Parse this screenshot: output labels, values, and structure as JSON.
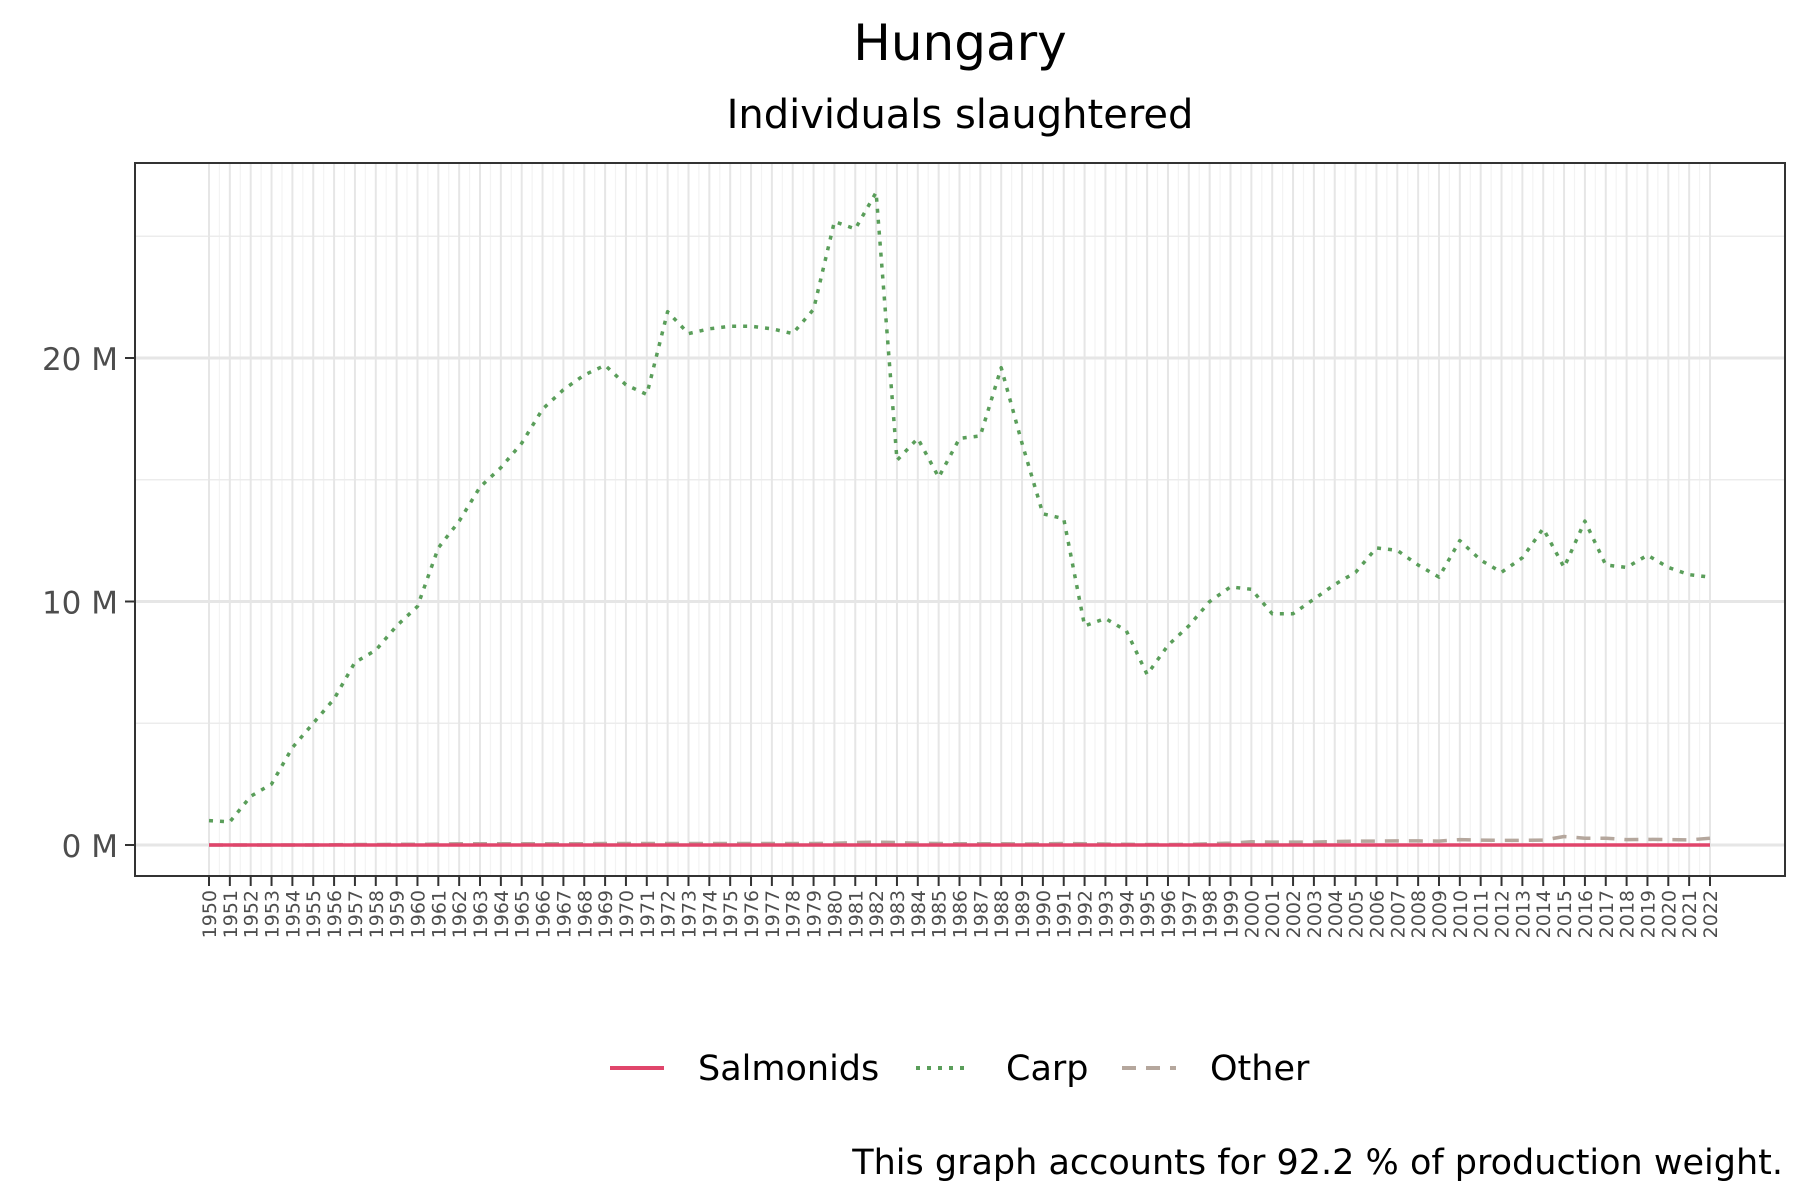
{
  "chart_data": {
    "type": "line",
    "title": "Hungary",
    "subtitle": "Individuals slaughtered",
    "caption": "This graph accounts for 92.2 % of production weight.",
    "xlabel": "",
    "ylabel": "",
    "ylim": [
      -1300000,
      28000000
    ],
    "y_ticks": [
      0,
      10000000,
      20000000
    ],
    "y_tick_labels": [
      "0 M",
      "10 M",
      "20 M"
    ],
    "legend_position": "bottom",
    "grid": true,
    "x": [
      1950,
      1951,
      1952,
      1953,
      1954,
      1955,
      1956,
      1957,
      1958,
      1959,
      1960,
      1961,
      1962,
      1963,
      1964,
      1965,
      1966,
      1967,
      1968,
      1969,
      1970,
      1971,
      1972,
      1973,
      1974,
      1975,
      1976,
      1977,
      1978,
      1979,
      1980,
      1981,
      1982,
      1983,
      1984,
      1985,
      1986,
      1987,
      1988,
      1989,
      1990,
      1991,
      1992,
      1993,
      1994,
      1995,
      1996,
      1997,
      1998,
      1999,
      2000,
      2001,
      2002,
      2003,
      2004,
      2005,
      2006,
      2007,
      2008,
      2009,
      2010,
      2011,
      2012,
      2013,
      2014,
      2015,
      2016,
      2017,
      2018,
      2019,
      2020,
      2021,
      2022
    ],
    "series": [
      {
        "name": "Salmonids",
        "color": "#e0456b",
        "dash": "solid",
        "values": [
          0,
          0,
          0,
          0,
          0,
          0,
          0,
          0,
          0,
          0,
          0,
          0,
          0,
          0,
          0,
          0,
          0,
          0,
          0,
          0,
          0,
          0,
          0,
          0,
          0,
          0,
          0,
          0,
          0,
          0,
          0,
          0,
          0,
          0,
          0,
          0,
          0,
          0,
          0,
          0,
          0,
          0,
          0,
          0,
          0,
          0,
          0,
          0,
          0,
          0,
          0,
          0,
          0,
          0,
          0,
          0,
          0,
          0,
          0,
          0,
          0,
          0,
          0,
          0,
          0,
          0,
          0,
          0,
          0,
          0,
          0,
          0,
          0
        ]
      },
      {
        "name": "Carp",
        "color": "#5a9e5a",
        "dash": "dotted",
        "values": [
          1000000,
          950000,
          2000000,
          2500000,
          4000000,
          5000000,
          6000000,
          7500000,
          8000000,
          9000000,
          9800000,
          12200000,
          13300000,
          14700000,
          15500000,
          16500000,
          17900000,
          18700000,
          19300000,
          19700000,
          18900000,
          18500000,
          21900000,
          21000000,
          21200000,
          21300000,
          21300000,
          21200000,
          21000000,
          22000000,
          25600000,
          25300000,
          26800000,
          15800000,
          16700000,
          15100000,
          16700000,
          16800000,
          19600000,
          16500000,
          13600000,
          13400000,
          9000000,
          9300000,
          8800000,
          7000000,
          8200000,
          9000000,
          10000000,
          10600000,
          10500000,
          9500000,
          9500000,
          10100000,
          10700000,
          11200000,
          12200000,
          12100000,
          11500000,
          11000000,
          12500000,
          11700000,
          11200000,
          11800000,
          13000000,
          11400000,
          13300000,
          11500000,
          11400000,
          11900000,
          11400000,
          11100000,
          11000000
        ]
      },
      {
        "name": "Other",
        "color": "#b5a79d",
        "dash": "dashed",
        "values": [
          0,
          0,
          0,
          0,
          0,
          0,
          10000,
          20000,
          20000,
          30000,
          30000,
          40000,
          50000,
          50000,
          50000,
          50000,
          50000,
          50000,
          50000,
          60000,
          60000,
          60000,
          60000,
          60000,
          60000,
          60000,
          60000,
          60000,
          60000,
          60000,
          70000,
          100000,
          120000,
          100000,
          70000,
          60000,
          50000,
          50000,
          50000,
          40000,
          50000,
          60000,
          50000,
          40000,
          30000,
          20000,
          20000,
          30000,
          50000,
          80000,
          130000,
          120000,
          120000,
          120000,
          140000,
          160000,
          160000,
          170000,
          170000,
          160000,
          220000,
          200000,
          190000,
          190000,
          200000,
          350000,
          280000,
          280000,
          220000,
          230000,
          220000,
          210000,
          280000
        ]
      }
    ]
  }
}
